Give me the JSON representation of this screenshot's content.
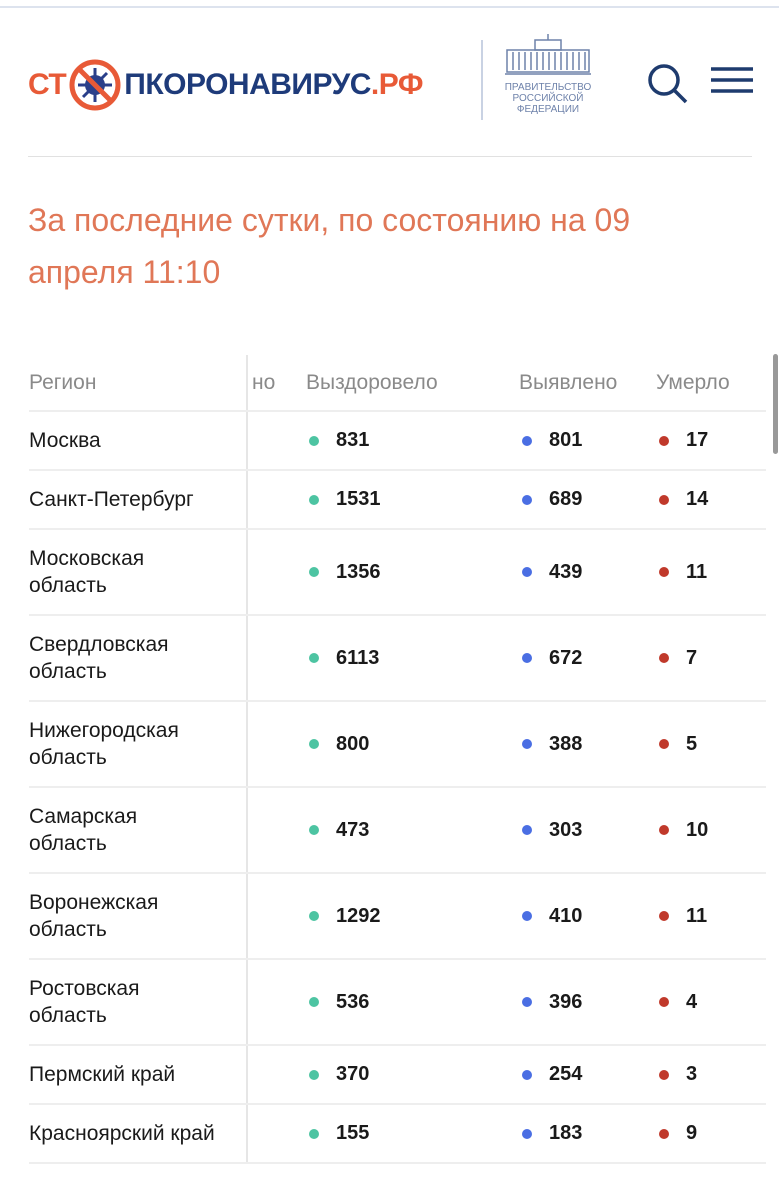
{
  "header": {
    "logo": {
      "start": "СТ",
      "middle": "ПКОРОНАВИРУС",
      "end": ".РФ"
    },
    "government": [
      "ПРАВИТЕЛЬСТВО",
      "РОССИЙСКОЙ",
      "ФЕДЕРАЦИИ"
    ]
  },
  "title": "За последние сутки, по состоянию на 09 апреля 11:10",
  "table": {
    "columns": [
      "Регион",
      "но",
      "Выздоровело",
      "Выявлено",
      "Умерло"
    ],
    "rows": [
      [
        "Москва",
        831,
        801,
        17
      ],
      [
        "Санкт-Петербург",
        1531,
        689,
        14
      ],
      [
        "Московская область",
        1356,
        439,
        11
      ],
      [
        "Свердловская область",
        6113,
        672,
        7
      ],
      [
        "Нижегородская область",
        800,
        388,
        5
      ],
      [
        "Самарская область",
        473,
        303,
        10
      ],
      [
        "Воронежская область",
        1292,
        410,
        11
      ],
      [
        "Ростовская область",
        536,
        396,
        4
      ],
      [
        "Пермский край",
        370,
        254,
        3
      ],
      [
        "Красноярский край",
        155,
        183,
        9
      ]
    ]
  }
}
